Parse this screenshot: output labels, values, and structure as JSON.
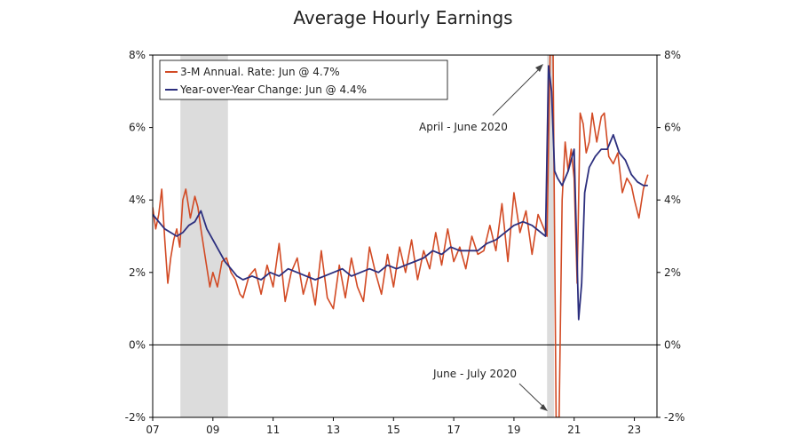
{
  "chart_data": {
    "type": "line",
    "title": "Average Hourly Earnings",
    "xlabel": "",
    "ylabel": "",
    "xlim": [
      2007.0,
      2023.75
    ],
    "ylim": [
      -2,
      8
    ],
    "x_ticks": [
      {
        "value": 2007,
        "label": "07"
      },
      {
        "value": 2009,
        "label": "09"
      },
      {
        "value": 2011,
        "label": "11"
      },
      {
        "value": 2013,
        "label": "13"
      },
      {
        "value": 2015,
        "label": "15"
      },
      {
        "value": 2017,
        "label": "17"
      },
      {
        "value": 2019,
        "label": "19"
      },
      {
        "value": 2021,
        "label": "21"
      },
      {
        "value": 2023,
        "label": "23"
      }
    ],
    "y_ticks": [
      {
        "value": 8,
        "label": "8%"
      },
      {
        "value": 6,
        "label": "6%"
      },
      {
        "value": 4,
        "label": "4%"
      },
      {
        "value": 2,
        "label": "2%"
      },
      {
        "value": 0,
        "label": "0%"
      },
      {
        "value": -2,
        "label": "-2%"
      }
    ],
    "recessions": [
      {
        "start": 2007.92,
        "end": 2009.5
      },
      {
        "start": 2020.1,
        "end": 2020.33
      }
    ],
    "legend_position": "top-left",
    "series": [
      {
        "name": "3-M Annual. Rate: Jun @ 4.7%",
        "color": "#d24a24",
        "x": [
          2007.0,
          2007.1,
          2007.2,
          2007.3,
          2007.4,
          2007.5,
          2007.6,
          2007.7,
          2007.8,
          2007.9,
          2008.0,
          2008.1,
          2008.25,
          2008.4,
          2008.5,
          2008.6,
          2008.75,
          2008.9,
          2009.0,
          2009.15,
          2009.3,
          2009.45,
          2009.6,
          2009.75,
          2009.9,
          2010.0,
          2010.2,
          2010.4,
          2010.6,
          2010.8,
          2011.0,
          2011.2,
          2011.4,
          2011.6,
          2011.8,
          2012.0,
          2012.2,
          2012.4,
          2012.6,
          2012.8,
          2013.0,
          2013.2,
          2013.4,
          2013.6,
          2013.8,
          2014.0,
          2014.2,
          2014.4,
          2014.6,
          2014.8,
          2015.0,
          2015.2,
          2015.4,
          2015.6,
          2015.8,
          2016.0,
          2016.2,
          2016.4,
          2016.6,
          2016.8,
          2017.0,
          2017.2,
          2017.4,
          2017.6,
          2017.8,
          2018.0,
          2018.2,
          2018.4,
          2018.6,
          2018.8,
          2019.0,
          2019.2,
          2019.4,
          2019.6,
          2019.8,
          2020.0,
          2020.1,
          2020.2,
          2020.3,
          2020.4,
          2020.5,
          2020.6,
          2020.7,
          2020.8,
          2020.9,
          2021.0,
          2021.1,
          2021.2,
          2021.3,
          2021.4,
          2021.5,
          2021.6,
          2021.75,
          2021.9,
          2022.0,
          2022.15,
          2022.3,
          2022.45,
          2022.6,
          2022.75,
          2022.9,
          2023.0,
          2023.15,
          2023.3,
          2023.45
        ],
        "values": [
          3.8,
          3.2,
          3.6,
          4.3,
          2.9,
          1.7,
          2.4,
          2.9,
          3.2,
          2.7,
          4.0,
          4.3,
          3.5,
          4.1,
          3.8,
          3.2,
          2.4,
          1.6,
          2.0,
          1.6,
          2.3,
          2.4,
          2.0,
          1.8,
          1.4,
          1.3,
          1.9,
          2.1,
          1.4,
          2.2,
          1.6,
          2.8,
          1.2,
          2.0,
          2.4,
          1.4,
          2.0,
          1.1,
          2.6,
          1.3,
          1.0,
          2.2,
          1.3,
          2.4,
          1.6,
          1.2,
          2.7,
          2.0,
          1.4,
          2.5,
          1.6,
          2.7,
          2.0,
          2.9,
          1.8,
          2.6,
          2.1,
          3.1,
          2.2,
          3.2,
          2.3,
          2.7,
          2.1,
          3.0,
          2.5,
          2.6,
          3.3,
          2.6,
          3.9,
          2.3,
          4.2,
          3.1,
          3.7,
          2.5,
          3.6,
          3.2,
          3.0,
          8.0,
          8.0,
          -2.0,
          -2.0,
          4.0,
          5.6,
          4.8,
          5.4,
          4.6,
          1.7,
          6.4,
          6.1,
          5.3,
          5.6,
          6.4,
          5.6,
          6.3,
          6.4,
          5.2,
          5.0,
          5.3,
          4.2,
          4.6,
          4.4,
          4.0,
          3.5,
          4.3,
          4.7
        ]
      },
      {
        "name": "Year-over-Year Change: Jun @ 4.4%",
        "color": "#2c2f7e",
        "x": [
          2007.0,
          2007.2,
          2007.4,
          2007.6,
          2007.8,
          2008.0,
          2008.2,
          2008.4,
          2008.6,
          2008.8,
          2009.0,
          2009.2,
          2009.4,
          2009.6,
          2009.8,
          2010.0,
          2010.3,
          2010.6,
          2010.9,
          2011.2,
          2011.5,
          2011.8,
          2012.1,
          2012.4,
          2012.7,
          2013.0,
          2013.3,
          2013.6,
          2013.9,
          2014.2,
          2014.5,
          2014.8,
          2015.1,
          2015.4,
          2015.7,
          2016.0,
          2016.3,
          2016.6,
          2016.9,
          2017.2,
          2017.5,
          2017.8,
          2018.1,
          2018.4,
          2018.7,
          2019.0,
          2019.3,
          2019.6,
          2019.9,
          2020.05,
          2020.15,
          2020.25,
          2020.35,
          2020.45,
          2020.6,
          2020.8,
          2021.0,
          2021.15,
          2021.25,
          2021.35,
          2021.5,
          2021.7,
          2021.9,
          2022.1,
          2022.3,
          2022.5,
          2022.7,
          2022.9,
          2023.1,
          2023.3,
          2023.45
        ],
        "values": [
          3.6,
          3.4,
          3.2,
          3.1,
          3.0,
          3.1,
          3.3,
          3.4,
          3.7,
          3.2,
          2.9,
          2.6,
          2.3,
          2.1,
          1.9,
          1.8,
          1.9,
          1.8,
          2.0,
          1.9,
          2.1,
          2.0,
          1.9,
          1.8,
          1.9,
          2.0,
          2.1,
          1.9,
          2.0,
          2.1,
          2.0,
          2.2,
          2.1,
          2.2,
          2.3,
          2.4,
          2.6,
          2.5,
          2.7,
          2.6,
          2.6,
          2.6,
          2.8,
          2.9,
          3.1,
          3.3,
          3.4,
          3.3,
          3.1,
          3.0,
          7.7,
          7.0,
          4.8,
          4.6,
          4.4,
          4.8,
          5.4,
          0.7,
          1.7,
          4.2,
          4.9,
          5.2,
          5.4,
          5.4,
          5.8,
          5.3,
          5.1,
          4.7,
          4.5,
          4.4,
          4.4
        ]
      }
    ],
    "annotations": [
      {
        "text": "April - June 2020"
      },
      {
        "text": "June - July 2020"
      }
    ]
  }
}
